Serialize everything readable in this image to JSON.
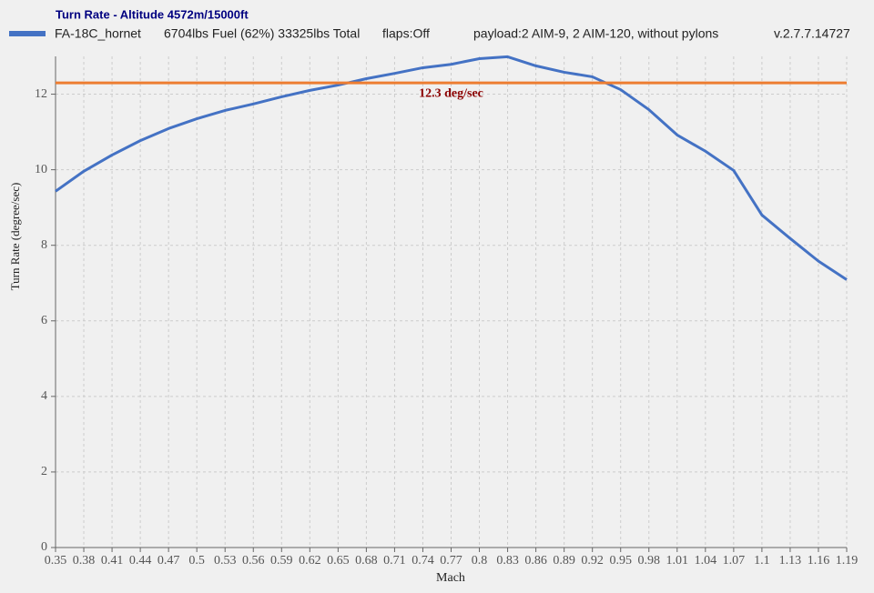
{
  "chart_data": {
    "type": "line",
    "title": "Turn Rate - Altitude 4572m/15000ft",
    "info": [
      "6704lbs Fuel (62%) 33325lbs Total",
      "flaps:Off",
      "payload:2 AIM-9, 2 AIM-120, without pylons",
      "v.2.7.7.14727"
    ],
    "x_label": "Mach",
    "y_label": "Turn Rate (degree/sec)",
    "x": [
      0.35,
      0.38,
      0.41,
      0.44,
      0.47,
      0.5,
      0.53,
      0.56,
      0.59,
      0.62,
      0.65,
      0.68,
      0.71,
      0.74,
      0.77,
      0.8,
      0.83,
      0.86,
      0.89,
      0.92,
      0.95,
      0.98,
      1.01,
      1.04,
      1.07,
      1.1,
      1.13,
      1.16,
      1.19
    ],
    "series": [
      {
        "name": "FA-18C_hornet",
        "color": "#4472c4",
        "values": [
          9.43,
          9.96,
          10.39,
          10.77,
          11.09,
          11.35,
          11.57,
          11.74,
          11.93,
          12.1,
          12.24,
          12.41,
          12.55,
          12.7,
          12.79,
          12.94,
          12.99,
          12.75,
          12.58,
          12.46,
          12.12,
          11.59,
          10.92,
          10.49,
          9.98,
          8.8,
          8.18,
          7.58,
          7.09
        ]
      }
    ],
    "reference_line": {
      "value": 12.3,
      "label": "12.3 deg/sec",
      "color": "#ed7d31",
      "label_color": "#8b0000"
    },
    "xlim": [
      0.35,
      1.19
    ],
    "xticks": [
      0.35,
      0.38,
      0.41,
      0.44,
      0.47,
      0.5,
      0.53,
      0.56,
      0.59,
      0.62,
      0.65,
      0.68,
      0.71,
      0.74,
      0.77,
      0.8,
      0.83,
      0.86,
      0.89,
      0.92,
      0.95,
      0.98,
      1.01,
      1.04,
      1.07,
      1.1,
      1.13,
      1.16,
      1.19
    ],
    "ylim": [
      0,
      13
    ],
    "yticks": [
      0,
      2,
      4,
      6,
      8,
      10,
      12
    ],
    "grid": true
  }
}
